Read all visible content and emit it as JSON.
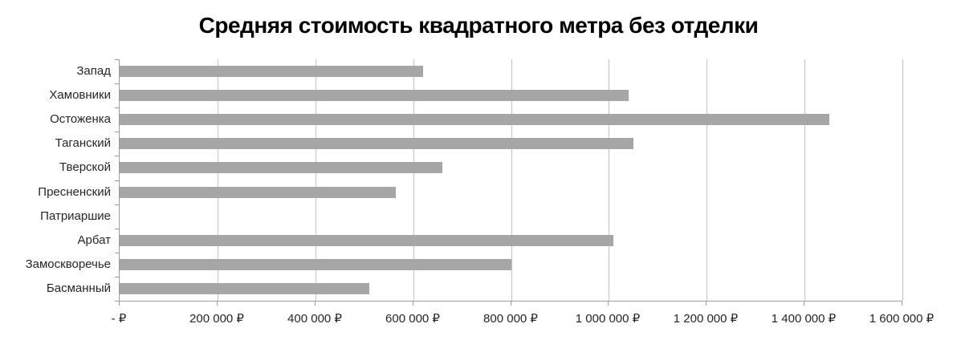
{
  "chart_data": {
    "type": "bar",
    "orientation": "horizontal",
    "title": "Средняя стоимость квадратного метра без отделки",
    "categories": [
      "Запад",
      "Хамовники",
      "Остоженка",
      "Таганский",
      "Тверской",
      "Пресненский",
      "Патриаршие",
      "Арбат",
      "Замоскворечье",
      "Басманный"
    ],
    "values": [
      620000,
      1040000,
      1450000,
      1050000,
      660000,
      565000,
      0,
      1010000,
      800000,
      510000
    ],
    "xlabel": "",
    "ylabel": "",
    "xlim": [
      0,
      1600000
    ],
    "x_tick_values": [
      0,
      200000,
      400000,
      600000,
      800000,
      1000000,
      1200000,
      1400000,
      1600000
    ],
    "x_tick_labels": [
      "- ₽",
      "200 000 ₽",
      "400 000 ₽",
      "600 000 ₽",
      "800 000 ₽",
      "1 000 000 ₽",
      "1 200 000 ₽",
      "1 400 000 ₽",
      "1 600 000 ₽"
    ],
    "grid": true,
    "legend": false,
    "colors": {
      "bar": "#a6a6a6",
      "gridline": "#c3c3c3",
      "axis": "#9b9b9b",
      "label": "#262626",
      "title": "#000000",
      "background": "#ffffff"
    }
  }
}
